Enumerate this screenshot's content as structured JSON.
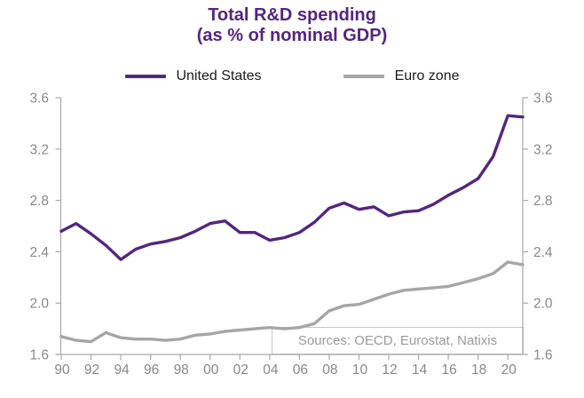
{
  "title": {
    "line1": "Total R&D spending",
    "line2": "(as % of nominal GDP)"
  },
  "legend": [
    {
      "label": "United States",
      "color": "#54267e"
    },
    {
      "label": "Euro zone",
      "color": "#a6a6a6"
    }
  ],
  "source_note": "Sources: OECD, Eurostat, Natixis",
  "colors": {
    "title": "#54267e",
    "us_line": "#54267e",
    "euro_line": "#a6a6a6",
    "axis": "#a8a8a8",
    "tick_label": "#888888",
    "legend_text": "#1c1c1c",
    "source_text": "#9b9b9b"
  },
  "chart_data": {
    "type": "line",
    "title": "Total R&D spending (as % of nominal GDP)",
    "xlabel": "",
    "ylabel": "",
    "grid": false,
    "legend_position": "top",
    "ylim": [
      1.6,
      3.6
    ],
    "yticks": [
      1.6,
      2.0,
      2.4,
      2.8,
      3.2,
      3.6
    ],
    "x_years": [
      1990,
      1991,
      1992,
      1993,
      1994,
      1995,
      1996,
      1997,
      1998,
      1999,
      2000,
      2001,
      2002,
      2003,
      2004,
      2005,
      2006,
      2007,
      2008,
      2009,
      2010,
      2011,
      2012,
      2013,
      2014,
      2015,
      2016,
      2017,
      2018,
      2019,
      2020,
      2021
    ],
    "xtick_labels": [
      "90",
      "92",
      "94",
      "96",
      "98",
      "00",
      "02",
      "04",
      "06",
      "08",
      "10",
      "12",
      "14",
      "16",
      "18",
      "20"
    ],
    "series": [
      {
        "name": "United States",
        "color": "#54267e",
        "values": [
          2.56,
          2.62,
          2.54,
          2.45,
          2.34,
          2.42,
          2.46,
          2.48,
          2.51,
          2.56,
          2.62,
          2.64,
          2.55,
          2.55,
          2.49,
          2.51,
          2.55,
          2.63,
          2.74,
          2.78,
          2.73,
          2.75,
          2.68,
          2.71,
          2.72,
          2.77,
          2.84,
          2.9,
          2.97,
          3.14,
          3.46,
          3.45
        ]
      },
      {
        "name": "Euro zone",
        "color": "#a6a6a6",
        "values": [
          1.74,
          1.71,
          1.7,
          1.77,
          1.73,
          1.72,
          1.72,
          1.71,
          1.72,
          1.75,
          1.76,
          1.78,
          1.79,
          1.8,
          1.81,
          1.8,
          1.81,
          1.84,
          1.94,
          1.98,
          1.99,
          2.03,
          2.07,
          2.1,
          2.11,
          2.12,
          2.13,
          2.16,
          2.19,
          2.23,
          2.32,
          2.3
        ]
      }
    ],
    "source_note": "Sources: OECD, Eurostat, Natixis"
  }
}
